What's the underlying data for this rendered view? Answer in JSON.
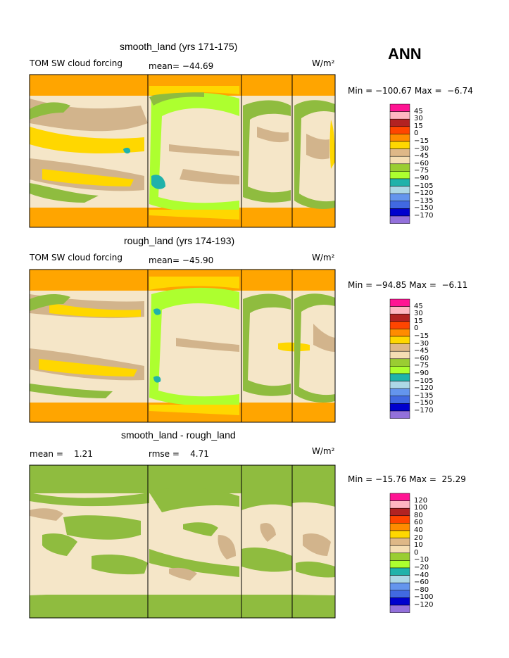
{
  "season": "ANN",
  "chart_data": [
    {
      "type": "heatmap",
      "title": "smooth_land (yrs 171-175)",
      "left_label": "TOM SW cloud forcing",
      "center_label": "mean= −44.69",
      "units": "W/m²",
      "minmax": "Min = −100.67 Max =  −6.74",
      "min": -100.67,
      "max": -6.74,
      "mean": -44.69,
      "legend_levels": [
        "45",
        "30",
        "15",
        "0",
        "−15",
        "−30",
        "−45",
        "−60",
        "−75",
        "−90",
        "−105",
        "−120",
        "−135",
        "−150",
        "−170"
      ]
    },
    {
      "type": "heatmap",
      "title": "rough_land (yrs 174-193)",
      "left_label": "TOM SW cloud forcing",
      "center_label": "mean= −45.90",
      "units": "W/m²",
      "minmax": "Min = −94.85 Max =  −6.11",
      "min": -94.85,
      "max": -6.11,
      "mean": -45.9,
      "legend_levels": [
        "45",
        "30",
        "15",
        "0",
        "−15",
        "−30",
        "−45",
        "−60",
        "−75",
        "−90",
        "−105",
        "−120",
        "−135",
        "−150",
        "−170"
      ]
    },
    {
      "type": "heatmap",
      "title": "smooth_land - rough_land",
      "left_label": "mean =    1.21",
      "center_label": "rmse =    4.71",
      "units": "W/m²",
      "minmax": "Min = −15.76 Max =  25.29",
      "min": -15.76,
      "max": 25.29,
      "mean": 1.21,
      "rmse": 4.71,
      "legend_levels": [
        "120",
        "100",
        "80",
        "60",
        "40",
        "20",
        "10",
        "0",
        "−10",
        "−20",
        "−40",
        "−60",
        "−80",
        "−100",
        "−120"
      ]
    }
  ],
  "colors": {
    "palette": [
      "#ff1493",
      "#ffb6c1",
      "#b22222",
      "#ff4500",
      "#ff8c00",
      "#ffd700",
      "#deb887",
      "#f5deb3",
      "#9acd32",
      "#adff2f",
      "#20b2aa",
      "#add8e6",
      "#6495ed",
      "#4169e1",
      "#0000cd",
      "#9370db"
    ],
    "orange": "#ffa500",
    "yellow": "#ffd700",
    "tan": "#d2b48c",
    "wheat": "#f5e6c8",
    "green1": "#8fbc3f",
    "green2": "#adff2f",
    "teal": "#20b2aa"
  }
}
